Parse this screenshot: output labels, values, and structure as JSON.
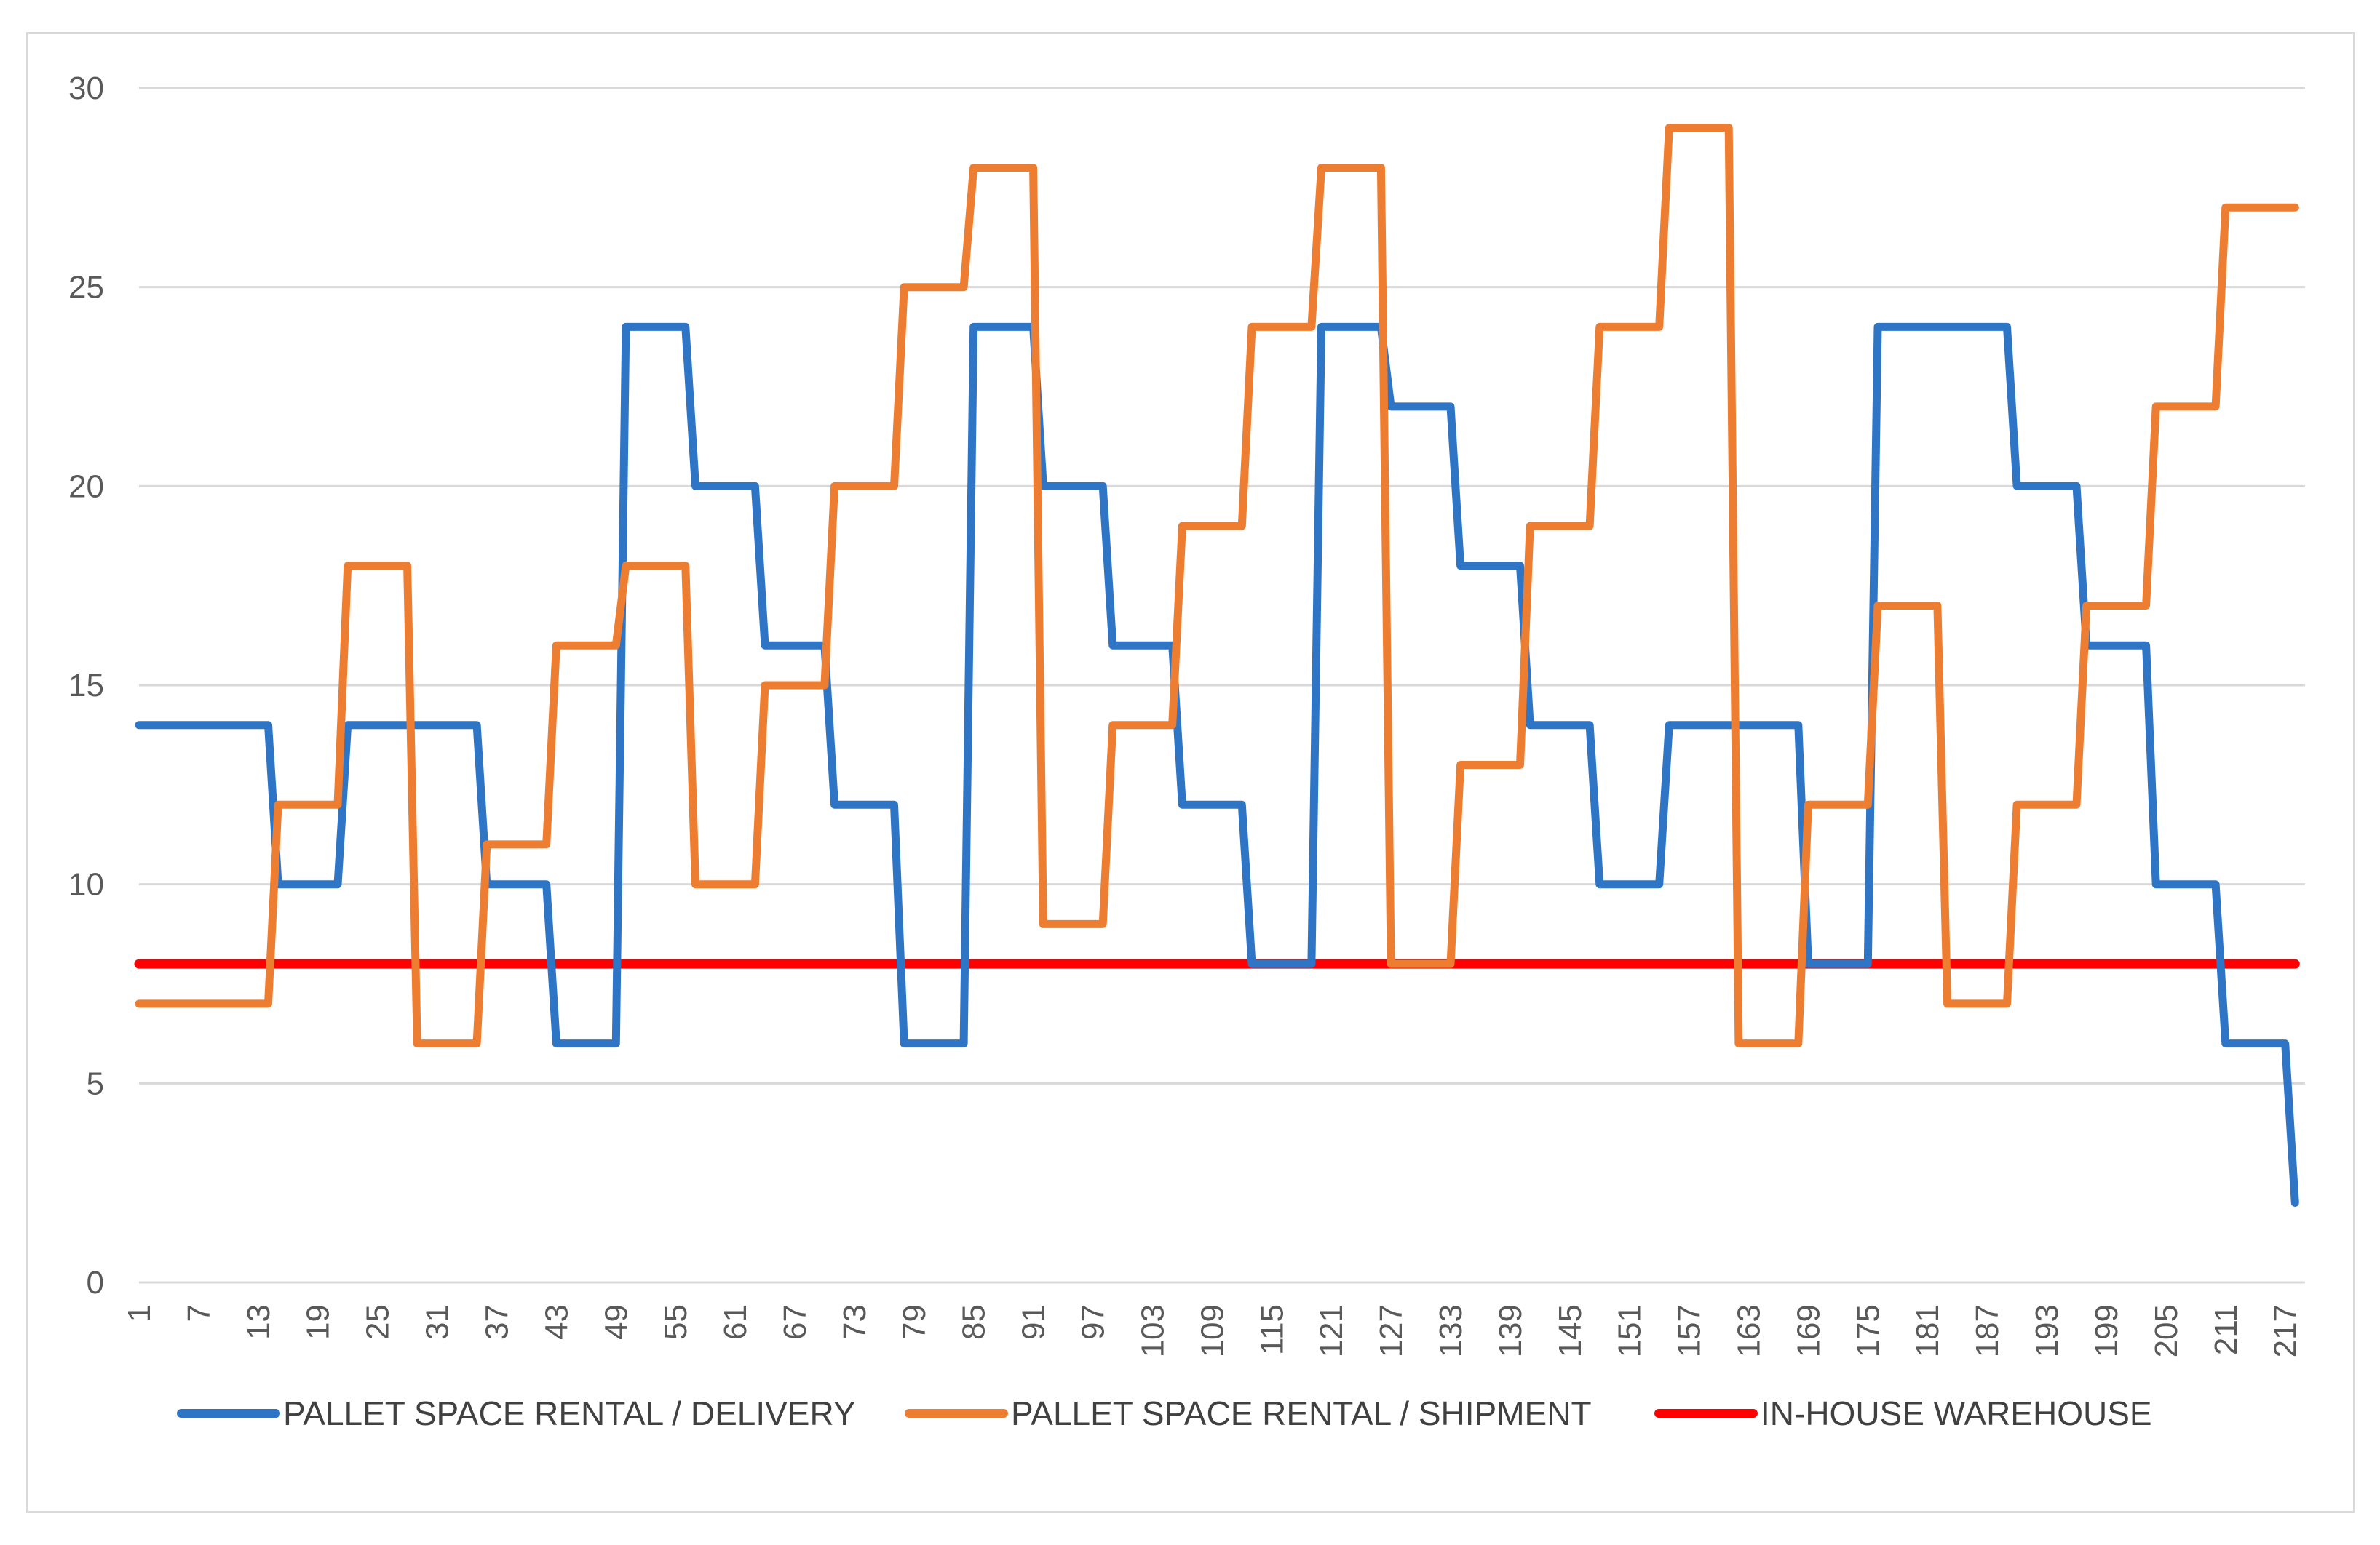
{
  "chart_data": {
    "type": "line",
    "title": "",
    "xlabel": "",
    "ylabel": "",
    "ylim": [
      0,
      30
    ],
    "yticks": [
      0,
      5,
      10,
      15,
      20,
      25,
      30
    ],
    "x_range": [
      1,
      219
    ],
    "xticks": [
      1,
      7,
      13,
      19,
      25,
      31,
      37,
      43,
      49,
      55,
      61,
      67,
      73,
      79,
      85,
      91,
      97,
      103,
      109,
      115,
      121,
      127,
      133,
      139,
      145,
      151,
      157,
      163,
      169,
      175,
      181,
      187,
      193,
      199,
      205,
      211,
      217
    ],
    "grid": "horizontal",
    "legend_position": "bottom",
    "series": [
      {
        "name": "PALLET SPACE RENTAL / DELIVERY",
        "color": "#2e75c6",
        "points": [
          [
            1,
            14
          ],
          [
            14,
            14
          ],
          [
            15,
            10
          ],
          [
            21,
            10
          ],
          [
            22,
            14
          ],
          [
            35,
            14
          ],
          [
            36,
            10
          ],
          [
            42,
            10
          ],
          [
            43,
            6
          ],
          [
            49,
            6
          ],
          [
            50,
            24
          ],
          [
            56,
            24
          ],
          [
            57,
            20
          ],
          [
            63,
            20
          ],
          [
            64,
            16
          ],
          [
            70,
            16
          ],
          [
            71,
            12
          ],
          [
            77,
            12
          ],
          [
            78,
            6
          ],
          [
            84,
            6
          ],
          [
            85,
            24
          ],
          [
            91,
            24
          ],
          [
            92,
            20
          ],
          [
            98,
            20
          ],
          [
            99,
            16
          ],
          [
            105,
            16
          ],
          [
            106,
            12
          ],
          [
            112,
            12
          ],
          [
            113,
            8
          ],
          [
            119,
            8
          ],
          [
            120,
            24
          ],
          [
            126,
            24
          ],
          [
            127,
            22
          ],
          [
            133,
            22
          ],
          [
            134,
            18
          ],
          [
            140,
            18
          ],
          [
            141,
            14
          ],
          [
            147,
            14
          ],
          [
            148,
            10
          ],
          [
            154,
            10
          ],
          [
            155,
            14
          ],
          [
            168,
            14
          ],
          [
            169,
            8
          ],
          [
            175,
            8
          ],
          [
            176,
            24
          ],
          [
            189,
            24
          ],
          [
            190,
            20
          ],
          [
            196,
            20
          ],
          [
            197,
            16
          ],
          [
            203,
            16
          ],
          [
            204,
            10
          ],
          [
            210,
            10
          ],
          [
            211,
            6
          ],
          [
            217,
            6
          ],
          [
            218,
            2
          ]
        ]
      },
      {
        "name": "PALLET SPACE RENTAL / SHIPMENT",
        "color": "#ed7d31",
        "points": [
          [
            1,
            7
          ],
          [
            14,
            7
          ],
          [
            15,
            12
          ],
          [
            21,
            12
          ],
          [
            22,
            18
          ],
          [
            28,
            18
          ],
          [
            29,
            6
          ],
          [
            35,
            6
          ],
          [
            36,
            11
          ],
          [
            42,
            11
          ],
          [
            43,
            16
          ],
          [
            49,
            16
          ],
          [
            50,
            18
          ],
          [
            56,
            18
          ],
          [
            57,
            10
          ],
          [
            63,
            10
          ],
          [
            64,
            15
          ],
          [
            70,
            15
          ],
          [
            71,
            20
          ],
          [
            77,
            20
          ],
          [
            78,
            25
          ],
          [
            84,
            25
          ],
          [
            85,
            28
          ],
          [
            91,
            28
          ],
          [
            92,
            9
          ],
          [
            98,
            9
          ],
          [
            99,
            14
          ],
          [
            105,
            14
          ],
          [
            106,
            19
          ],
          [
            112,
            19
          ],
          [
            113,
            24
          ],
          [
            119,
            24
          ],
          [
            120,
            28
          ],
          [
            126,
            28
          ],
          [
            127,
            8
          ],
          [
            133,
            8
          ],
          [
            134,
            13
          ],
          [
            140,
            13
          ],
          [
            141,
            19
          ],
          [
            147,
            19
          ],
          [
            148,
            24
          ],
          [
            154,
            24
          ],
          [
            155,
            29
          ],
          [
            161,
            29
          ],
          [
            162,
            6
          ],
          [
            168,
            6
          ],
          [
            169,
            12
          ],
          [
            175,
            12
          ],
          [
            176,
            17
          ],
          [
            182,
            17
          ],
          [
            183,
            7
          ],
          [
            189,
            7
          ],
          [
            190,
            12
          ],
          [
            196,
            12
          ],
          [
            197,
            17
          ],
          [
            203,
            17
          ],
          [
            204,
            22
          ],
          [
            210,
            22
          ],
          [
            211,
            27
          ],
          [
            218,
            27
          ]
        ]
      },
      {
        "name": "IN-HOUSE WAREHOUSE",
        "color": "#ff0000",
        "points": [
          [
            1,
            8
          ],
          [
            218,
            8
          ]
        ]
      }
    ]
  }
}
